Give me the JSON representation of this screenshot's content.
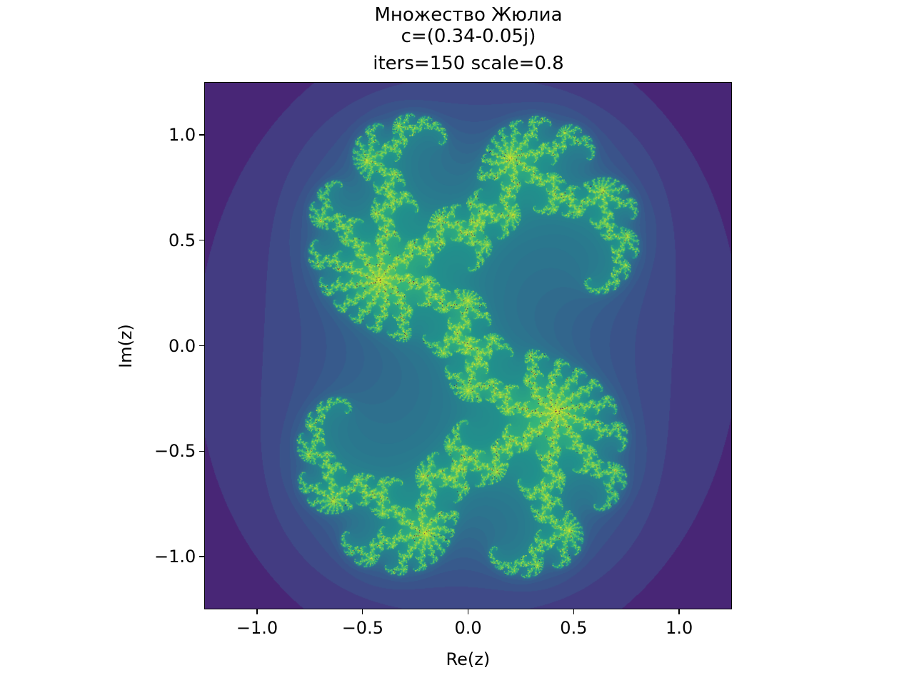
{
  "chart_data": {
    "type": "heatmap",
    "title_lines": [
      "Множество Жюлиа",
      "c=(0.34-0.05j)",
      "iters=150 scale=0.8"
    ],
    "xlabel": "Re(z)",
    "ylabel": "Im(z)",
    "xlim": [
      -1.25,
      1.25
    ],
    "ylim": [
      -1.25,
      1.25
    ],
    "xticks": [
      -1.0,
      -0.5,
      0.0,
      0.5,
      1.0
    ],
    "yticks": [
      -1.0,
      -0.5,
      0.0,
      0.5,
      1.0
    ],
    "xtick_labels": [
      "−1.0",
      "−0.5",
      "0.0",
      "0.5",
      "1.0"
    ],
    "ytick_labels": [
      "−1.0",
      "−0.5",
      "0.0",
      "0.5",
      "1.0"
    ],
    "julia_c": [
      0.34,
      -0.05
    ],
    "iterations": 150,
    "scale": 0.8,
    "colormap": "viridis",
    "grid": false,
    "background_color": "#440154"
  }
}
